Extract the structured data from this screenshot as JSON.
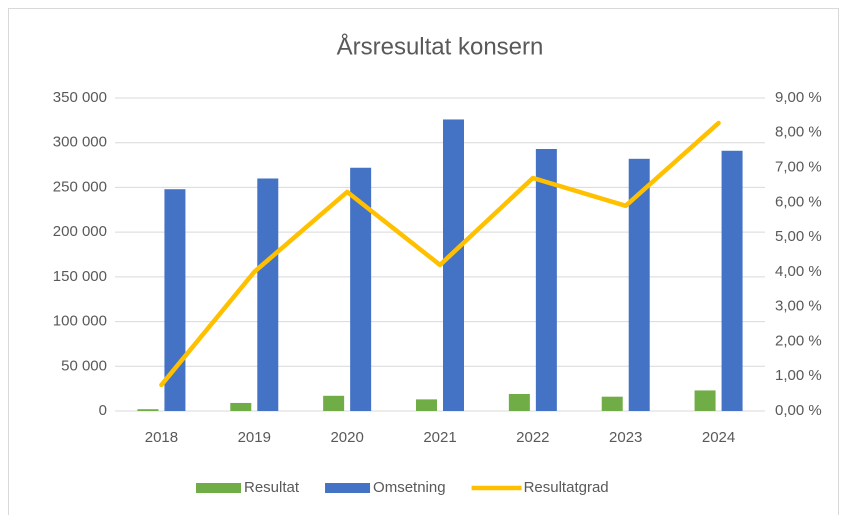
{
  "chart_data": {
    "type": "bar_line",
    "title": "Årsresultat konsern",
    "categories": [
      "2018",
      "2019",
      "2020",
      "2021",
      "2022",
      "2023",
      "2024"
    ],
    "series": [
      {
        "name": "Resultat",
        "color": "#70ad47",
        "type": "bar",
        "values": [
          2000,
          9000,
          17000,
          13000,
          19000,
          16000,
          23000
        ]
      },
      {
        "name": "Omsetning",
        "color": "#4472c4",
        "type": "bar",
        "values": [
          248000,
          260000,
          272000,
          326000,
          293000,
          282000,
          291000
        ]
      },
      {
        "name": "Resultatgrad",
        "color": "#ffc000",
        "type": "line",
        "axis": "y2",
        "values": [
          0.75,
          4.0,
          6.3,
          4.2,
          6.7,
          5.9,
          8.28
        ]
      }
    ],
    "ylim": [
      0,
      350000
    ],
    "yticks": [
      0,
      {
        "value": 50000,
        "label": "50 000"
      },
      {
        "value": 100000,
        "label": "100 000"
      },
      {
        "value": 150000,
        "label": "150 000"
      },
      {
        "value": 200000,
        "label": "200 000"
      },
      {
        "value": 250000,
        "label": "250 000"
      },
      {
        "value": 300000,
        "label": "300 000"
      },
      {
        "value": 350000,
        "label": "350 000"
      }
    ],
    "y2lim": [
      0,
      9
    ],
    "y2ticks": [
      {
        "value": 0,
        "label": "0,00 %"
      },
      {
        "value": 1,
        "label": "1,00 %"
      },
      {
        "value": 2,
        "label": "2,00 %"
      },
      {
        "value": 3,
        "label": "3,00 %"
      },
      {
        "value": 4,
        "label": "4,00 %"
      },
      {
        "value": 5,
        "label": "5,00 %"
      },
      {
        "value": 6,
        "label": "6,00 %"
      },
      {
        "value": 7,
        "label": "7,00 %"
      },
      {
        "value": 8,
        "label": "8,00 %"
      },
      {
        "value": 9,
        "label": "9,00 %"
      }
    ],
    "grid": true,
    "legend": "bottom"
  }
}
